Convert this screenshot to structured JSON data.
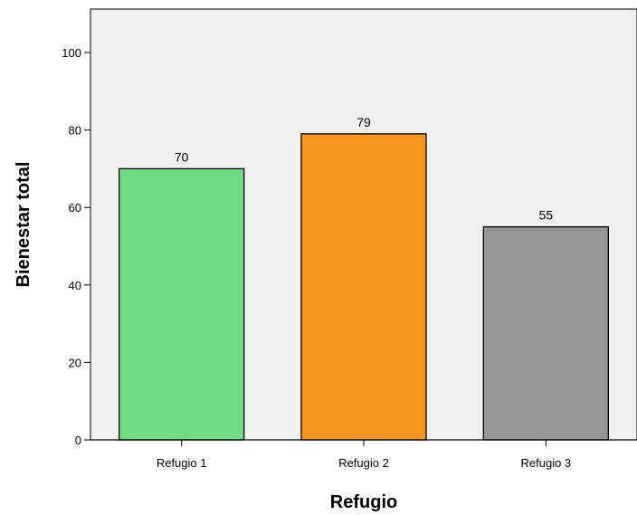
{
  "chart_data": {
    "type": "bar",
    "title": "",
    "xlabel": "Refugio",
    "ylabel": "Bienestar total",
    "categories": [
      "Refugio 1",
      "Refugio 2",
      "Refugio 3"
    ],
    "values": [
      70,
      79,
      55
    ],
    "data_labels": [
      "70",
      "79",
      "55"
    ],
    "bar_colors": [
      "#6fdc82",
      "#f7951e",
      "#969696"
    ],
    "ylim": [
      0,
      112
    ],
    "yticks": [
      0,
      20,
      40,
      60,
      80,
      100
    ],
    "ytick_labels": [
      "0",
      "20",
      "40",
      "60",
      "80",
      "100"
    ],
    "grid": false,
    "plot_background": "#f0f0f0"
  }
}
